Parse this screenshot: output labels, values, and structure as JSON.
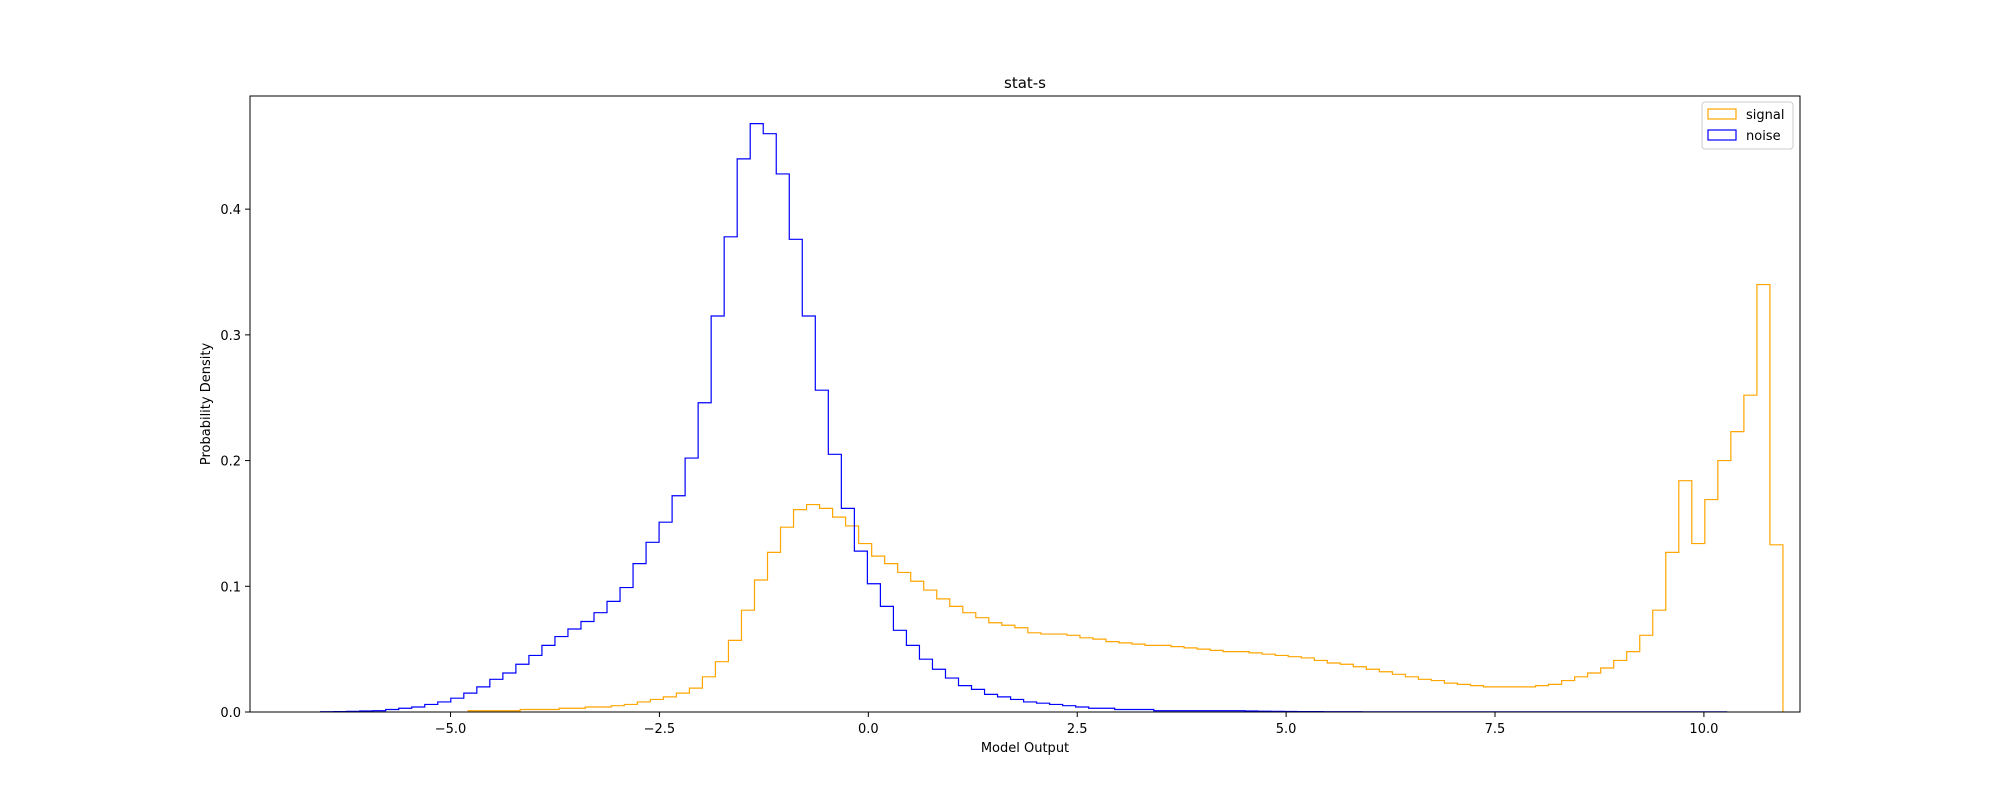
{
  "chart_data": {
    "type": "histogram",
    "title": "stat-s",
    "xlabel": "Model Output",
    "ylabel": "Probability Density",
    "xlim": [
      -7.4,
      11.15
    ],
    "ylim": [
      0,
      0.49
    ],
    "x_ticks": [
      -5.0,
      -2.5,
      0.0,
      2.5,
      5.0,
      7.5,
      10.0
    ],
    "x_tick_labels": [
      "−5.0",
      "−2.5",
      "0.0",
      "2.5",
      "5.0",
      "7.5",
      "10.0"
    ],
    "y_ticks": [
      0.0,
      0.1,
      0.2,
      0.3,
      0.4
    ],
    "y_tick_labels": [
      "0.0",
      "0.1",
      "0.2",
      "0.3",
      "0.4"
    ],
    "grid": false,
    "legend": "top-right",
    "histtype": "step",
    "series": [
      {
        "name": "signal",
        "color": "#ffa500",
        "bin_start": -4.79,
        "bin_width": 0.1558,
        "values": [
          0.001,
          0.001,
          0.001,
          0.001,
          0.002,
          0.002,
          0.002,
          0.003,
          0.003,
          0.004,
          0.004,
          0.005,
          0.006,
          0.008,
          0.01,
          0.012,
          0.015,
          0.019,
          0.028,
          0.04,
          0.057,
          0.081,
          0.105,
          0.127,
          0.147,
          0.161,
          0.165,
          0.162,
          0.155,
          0.148,
          0.134,
          0.124,
          0.118,
          0.111,
          0.104,
          0.097,
          0.09,
          0.084,
          0.079,
          0.075,
          0.071,
          0.069,
          0.067,
          0.063,
          0.062,
          0.062,
          0.061,
          0.059,
          0.058,
          0.056,
          0.055,
          0.054,
          0.053,
          0.053,
          0.052,
          0.051,
          0.05,
          0.049,
          0.048,
          0.048,
          0.047,
          0.046,
          0.045,
          0.044,
          0.043,
          0.041,
          0.039,
          0.038,
          0.036,
          0.034,
          0.032,
          0.03,
          0.028,
          0.026,
          0.025,
          0.023,
          0.022,
          0.021,
          0.02,
          0.02,
          0.02,
          0.02,
          0.021,
          0.022,
          0.025,
          0.028,
          0.031,
          0.035,
          0.041,
          0.048,
          0.061,
          0.081,
          0.127,
          0.184,
          0.134,
          0.169,
          0.2,
          0.223,
          0.252,
          0.34,
          0.133
        ]
      },
      {
        "name": "noise",
        "color": "#0000ff",
        "bin_start": -6.555,
        "bin_width": 0.1558,
        "values": [
          0.0002,
          0.0003,
          0.0005,
          0.0008,
          0.001,
          0.002,
          0.003,
          0.004,
          0.006,
          0.008,
          0.011,
          0.015,
          0.02,
          0.026,
          0.031,
          0.038,
          0.045,
          0.053,
          0.06,
          0.066,
          0.072,
          0.079,
          0.088,
          0.099,
          0.118,
          0.135,
          0.151,
          0.172,
          0.202,
          0.246,
          0.315,
          0.378,
          0.44,
          0.468,
          0.46,
          0.428,
          0.376,
          0.315,
          0.256,
          0.205,
          0.162,
          0.128,
          0.102,
          0.084,
          0.065,
          0.053,
          0.042,
          0.034,
          0.027,
          0.021,
          0.018,
          0.014,
          0.012,
          0.01,
          0.008,
          0.007,
          0.006,
          0.005,
          0.004,
          0.003,
          0.003,
          0.002,
          0.002,
          0.002,
          0.001,
          0.001,
          0.001,
          0.001,
          0.001,
          0.001,
          0.001,
          0.0008,
          0.0006,
          0.0005,
          0.0004,
          0.0003,
          0.0003,
          0.0002,
          0.0002,
          0.0002,
          0.0001,
          0.0001,
          0.0001,
          0.0001,
          0.0001,
          0.0001,
          0.0001,
          0.0001,
          0.0001,
          0.0001,
          0.0001,
          0.0001,
          0.0001,
          0.0001,
          0.0001,
          0.0001,
          0.0001,
          0.0001,
          0.0001,
          0.0001,
          0.0001,
          0.0001,
          0.0001,
          0.0001,
          0.0001,
          0.0001,
          0.0001,
          0.0001
        ]
      }
    ]
  }
}
